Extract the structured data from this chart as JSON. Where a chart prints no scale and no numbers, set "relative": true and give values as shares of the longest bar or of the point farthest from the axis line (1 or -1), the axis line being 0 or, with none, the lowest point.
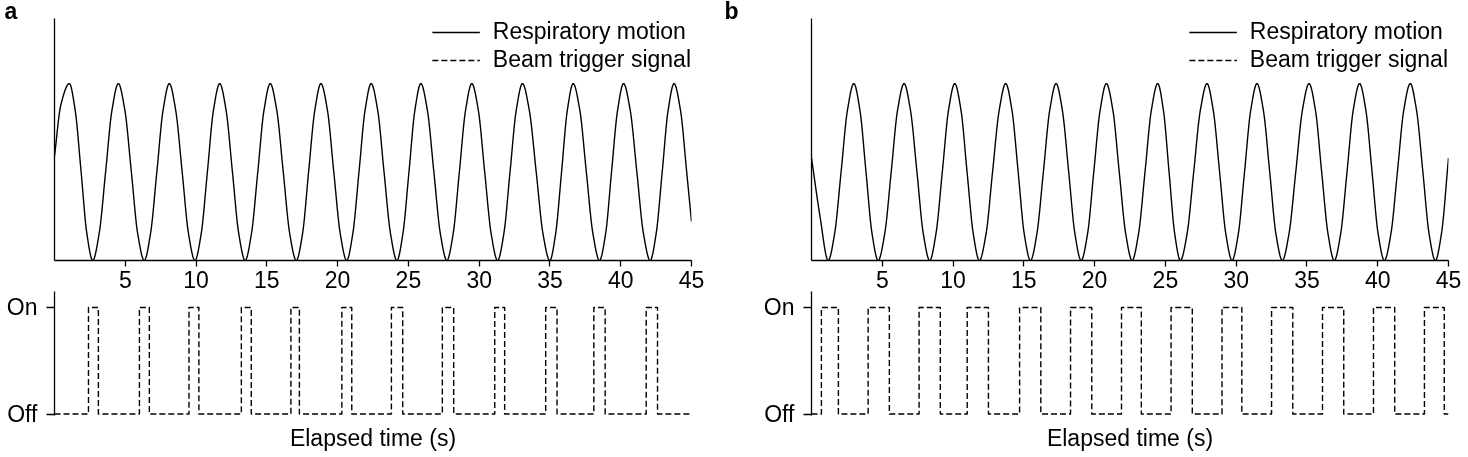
{
  "chart_data": [
    {
      "type": "line",
      "title": "a",
      "relative": true,
      "xlim": [
        0,
        45
      ],
      "xticks": [
        5,
        10,
        15,
        20,
        25,
        30,
        35,
        40,
        45
      ],
      "tick_labels": "x",
      "legend": "top right",
      "line_style": "solid",
      "x": [
        0,
        0.45,
        1.05,
        1.46,
        1.88,
        2.29,
        2.7,
        3.15,
        3.61,
        4.06,
        4.51,
        4.97,
        5.43,
        5.88,
        6.34,
        6.78,
        7.23,
        7.67,
        8.11,
        8.56,
        9.02,
        9.47,
        9.92,
        10.36,
        10.8,
        11.23,
        11.67,
        12.12,
        12.57,
        13.02,
        13.47,
        13.91,
        14.36,
        14.8,
        15.24,
        15.7,
        16.16,
        16.62,
        17.08,
        17.52,
        17.95,
        18.39,
        18.82,
        19.28,
        19.73,
        20.19,
        20.64,
        21.07,
        21.51,
        21.94,
        22.37,
        22.83,
        23.28,
        23.74,
        24.19,
        24.61,
        25.04,
        25.46,
        25.88,
        26.34,
        26.8,
        27.26,
        27.72,
        28.16,
        28.6,
        29.04,
        29.48,
        29.94,
        30.39,
        30.85,
        31.3,
        31.74,
        32.18,
        32.62,
        33.06,
        33.54,
        34.03,
        34.51,
        34.99,
        35.4,
        35.82,
        36.23,
        36.64,
        37.11,
        37.57,
        38.04,
        38.5,
        38.93,
        39.35,
        39.78,
        40.2,
        40.67,
        41.14,
        41.61,
        42.08,
        42.5,
        42.93,
        43.35,
        43.77,
        44.22,
        44.66,
        45
      ],
      "series": [
        {
          "name": "Respiratory motion",
          "color": "#000000",
          "values": [
            0.59,
            0.88,
            1,
            0.85,
            0.5,
            0.15,
            0,
            0.15,
            0.5,
            0.85,
            1,
            0.85,
            0.5,
            0.15,
            0,
            0.15,
            0.5,
            0.85,
            1,
            0.85,
            0.5,
            0.15,
            0,
            0.15,
            0.5,
            0.85,
            1,
            0.85,
            0.5,
            0.15,
            0,
            0.15,
            0.5,
            0.85,
            1,
            0.85,
            0.5,
            0.15,
            0,
            0.15,
            0.5,
            0.85,
            1,
            0.85,
            0.5,
            0.15,
            0,
            0.15,
            0.5,
            0.85,
            1,
            0.85,
            0.5,
            0.15,
            0,
            0.15,
            0.5,
            0.85,
            1,
            0.85,
            0.5,
            0.15,
            0,
            0.15,
            0.5,
            0.85,
            1,
            0.85,
            0.5,
            0.15,
            0,
            0.15,
            0.5,
            0.85,
            1,
            0.85,
            0.5,
            0.15,
            0,
            0.15,
            0.5,
            0.85,
            1,
            0.85,
            0.5,
            0.15,
            0,
            0.15,
            0.5,
            0.85,
            1,
            0.85,
            0.5,
            0.15,
            0,
            0.15,
            0.5,
            0.85,
            1,
            0.85,
            0.5,
            0.22
          ]
        }
      ]
    },
    {
      "type": "step",
      "relative": true,
      "xlabel": "Elapsed time (s)",
      "xlim": [
        0,
        45
      ],
      "tick_labels": false,
      "line_style": "dashed",
      "annotations": [
        "On",
        "Off"
      ],
      "x": [
        0,
        2.4,
        3.1,
        6.0,
        6.7,
        9.5,
        10.2,
        13.2,
        13.9,
        16.7,
        17.3,
        20.3,
        21.0,
        23.8,
        24.6,
        27.4,
        28.2,
        31.1,
        31.8,
        34.7,
        35.5,
        38.1,
        38.9,
        41.8,
        42.6,
        45
      ],
      "series": [
        {
          "name": "Beam trigger signal",
          "color": "#000000",
          "values": [
            0,
            1,
            0,
            1,
            0,
            1,
            0,
            1,
            0,
            1,
            0,
            1,
            0,
            1,
            0,
            1,
            0,
            1,
            0,
            1,
            0,
            1,
            0,
            1,
            0,
            0
          ]
        }
      ]
    },
    {
      "type": "line",
      "title": "b",
      "relative": true,
      "xlim": [
        0,
        45
      ],
      "xticks": [
        5,
        10,
        15,
        20,
        25,
        30,
        35,
        40,
        45
      ],
      "tick_labels": "x",
      "legend": "top right",
      "line_style": "solid",
      "x": [
        0,
        0.6,
        1.18,
        1.63,
        2.09,
        2.54,
        2.99,
        3.42,
        3.85,
        4.28,
        4.71,
        5.17,
        5.63,
        6.08,
        6.54,
        6.99,
        7.45,
        7.9,
        8.35,
        8.79,
        9.24,
        9.68,
        10.12,
        10.56,
        10.99,
        11.43,
        11.86,
        12.33,
        12.79,
        13.26,
        13.72,
        14.16,
        14.6,
        15.03,
        15.47,
        15.92,
        16.38,
        16.83,
        17.28,
        17.72,
        18.17,
        18.61,
        19.05,
        19.5,
        19.94,
        20.39,
        20.83,
        21.29,
        21.74,
        22.2,
        22.65,
        23.1,
        23.56,
        24.01,
        24.46,
        24.86,
        25.26,
        25.66,
        26.06,
        26.53,
        27.0,
        27.47,
        27.94,
        28.38,
        28.83,
        29.27,
        29.71,
        30.15,
        30.59,
        31.03,
        31.47,
        31.92,
        32.37,
        32.81,
        33.26,
        33.73,
        34.21,
        34.68,
        35.15,
        35.6,
        36.04,
        36.49,
        36.93,
        37.38,
        37.83,
        38.27,
        38.72,
        39.16,
        39.6,
        40.03,
        40.47,
        40.93,
        41.39,
        41.84,
        42.3,
        42.74,
        43.19,
        43.63,
        44.07,
        44.5,
        45
      ],
      "series": [
        {
          "name": "Respiratory motion",
          "color": "#000000",
          "values": [
            0.58,
            0.25,
            0,
            0.15,
            0.5,
            0.85,
            1,
            0.85,
            0.5,
            0.15,
            0,
            0.15,
            0.5,
            0.85,
            1,
            0.85,
            0.5,
            0.15,
            0,
            0.15,
            0.5,
            0.85,
            1,
            0.85,
            0.5,
            0.15,
            0,
            0.15,
            0.5,
            0.85,
            1,
            0.85,
            0.5,
            0.15,
            0,
            0.15,
            0.5,
            0.85,
            1,
            0.85,
            0.5,
            0.15,
            0,
            0.15,
            0.5,
            0.85,
            1,
            0.85,
            0.5,
            0.15,
            0,
            0.15,
            0.5,
            0.85,
            1,
            0.85,
            0.5,
            0.15,
            0,
            0.15,
            0.5,
            0.85,
            1,
            0.85,
            0.5,
            0.15,
            0,
            0.15,
            0.5,
            0.85,
            1,
            0.85,
            0.5,
            0.15,
            0,
            0.15,
            0.5,
            0.85,
            1,
            0.85,
            0.5,
            0.15,
            0,
            0.15,
            0.5,
            0.85,
            1,
            0.85,
            0.5,
            0.15,
            0,
            0.15,
            0.5,
            0.85,
            1,
            0.85,
            0.5,
            0.15,
            0,
            0.15,
            0.58
          ]
        }
      ]
    },
    {
      "type": "step",
      "relative": true,
      "xlabel": "Elapsed time (s)",
      "xlim": [
        0,
        45
      ],
      "tick_labels": false,
      "line_style": "dashed",
      "annotations": [
        "On",
        "Off"
      ],
      "x": [
        0,
        0.7,
        1.9,
        4.0,
        5.5,
        7.6,
        9.1,
        11.0,
        12.5,
        14.7,
        16.2,
        18.3,
        19.8,
        21.9,
        23.3,
        25.4,
        26.9,
        29.0,
        30.4,
        32.5,
        34.0,
        36.1,
        37.6,
        39.7,
        41.2,
        43.3,
        44.7,
        45
      ],
      "series": [
        {
          "name": "Beam trigger signal",
          "color": "#000000",
          "values": [
            0,
            1,
            0,
            1,
            0,
            1,
            0,
            1,
            0,
            1,
            0,
            1,
            0,
            1,
            0,
            1,
            0,
            1,
            0,
            1,
            0,
            1,
            0,
            1,
            0,
            1,
            0,
            0
          ]
        }
      ]
    }
  ]
}
